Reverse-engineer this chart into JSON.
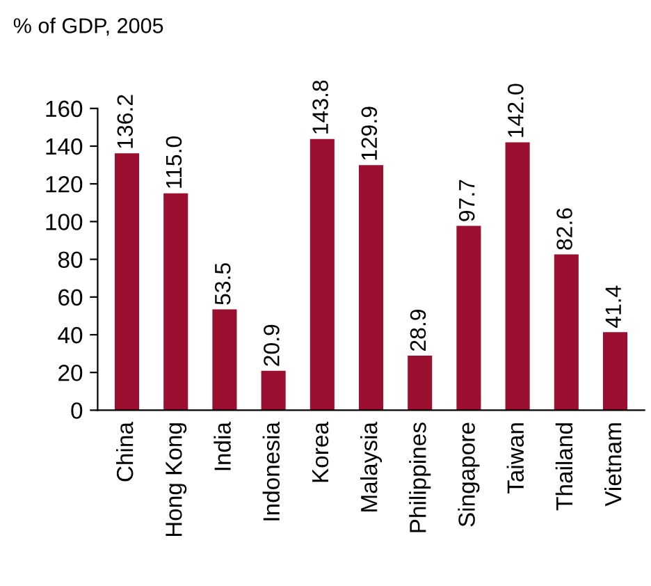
{
  "chart_data": {
    "type": "bar",
    "ylabel": "% of GDP, 2005",
    "categories": [
      "China",
      "Hong Kong",
      "India",
      "Indonesia",
      "Korea",
      "Malaysia",
      "Philippines",
      "Singapore",
      "Taiwan",
      "Thailand",
      "Vietnam"
    ],
    "values": [
      136.2,
      115.0,
      53.5,
      20.9,
      143.8,
      129.9,
      28.9,
      97.7,
      142.0,
      82.6,
      41.4
    ],
    "color": "#9b1030",
    "ylim": [
      0,
      160
    ],
    "yticks": [
      0,
      20,
      40,
      60,
      80,
      100,
      120,
      140,
      160
    ],
    "value_labels": [
      "136.2",
      "115.0",
      "53.5",
      "20.9",
      "143.8",
      "129.9",
      "28.9",
      "97.7",
      "142.0",
      "82.6",
      "41.4"
    ],
    "grid": false,
    "legend": false
  }
}
